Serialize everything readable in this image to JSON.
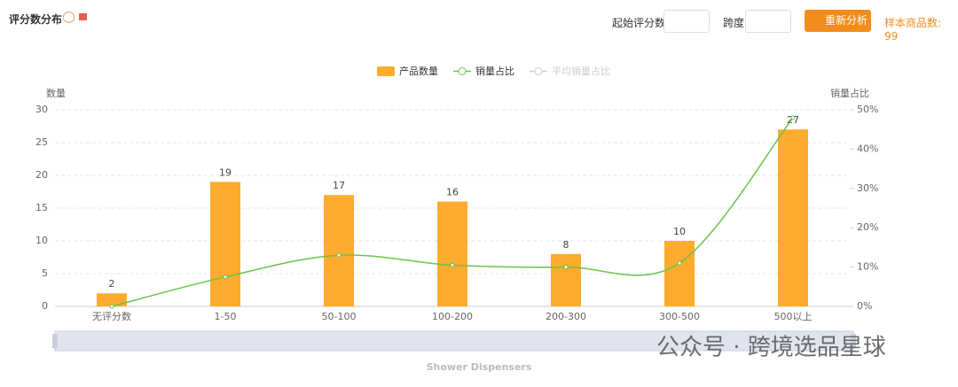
{
  "header": {
    "title": "评分数分布",
    "start_label": "起始评分数",
    "span_label": "跨度",
    "button": "重新分析",
    "sample": "样本商品数: 99"
  },
  "watermark": "公众号 · 跨境选品星球",
  "chart_data": {
    "type": "bar",
    "ylabel": "数量",
    "y2label": "销量占比",
    "categories": [
      "无评分数",
      "1-50",
      "50-100",
      "100-200",
      "200-300",
      "300-500",
      "500以上"
    ],
    "series": [
      {
        "name": "产品数量",
        "color": "#ffab2e",
        "type": "bar",
        "values": [
          2,
          19,
          17,
          16,
          8,
          10,
          27
        ]
      },
      {
        "name": "销量占比",
        "color": "#6cc24a",
        "type": "line",
        "axis": "y2",
        "values": [
          0,
          7.5,
          13,
          10.5,
          10,
          11,
          48
        ]
      },
      {
        "name": "平均销量占比",
        "color": "#cccccc",
        "type": "line",
        "axis": "y2",
        "visible": false
      }
    ],
    "ylim": [
      0,
      30
    ],
    "yticks": [
      0,
      5,
      10,
      15,
      20,
      25,
      30
    ],
    "y2lim": [
      0,
      50
    ],
    "y2ticks": [
      {
        "value": 0,
        "label": "0%"
      },
      {
        "value": 10,
        "label": "10%"
      },
      {
        "value": 20,
        "label": "20%"
      },
      {
        "value": 30,
        "label": "30%"
      },
      {
        "value": 40,
        "label": "40%"
      },
      {
        "value": 50,
        "label": "50%"
      }
    ],
    "grid": true,
    "datazoom_label": "Shower Dispensers"
  }
}
